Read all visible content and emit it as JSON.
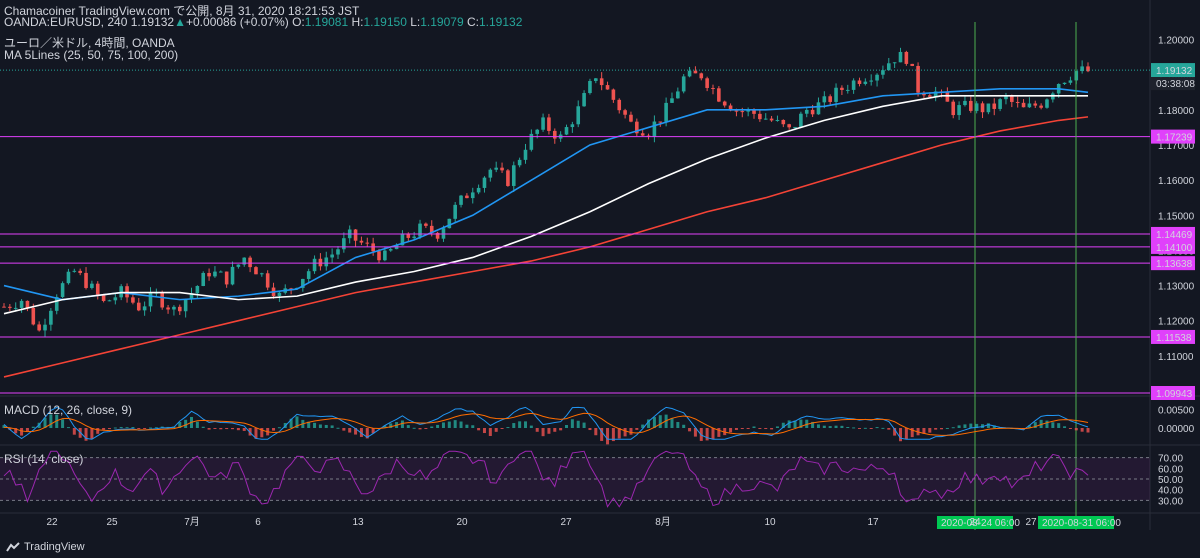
{
  "header": {
    "line1": "Chamacoiner TradingView.com で公開, 8月 31, 2020 18:21:53 JST",
    "symbol_prefix": "OANDA:EURUSD, 240",
    "last": "1.19132",
    "change": "+0.00086 (+0.07%)",
    "o_label": "O:",
    "o": "1.19081",
    "h_label": "H:",
    "h": "1.19150",
    "l_label": "L:",
    "l": "1.19079",
    "c_label": "C:",
    "c": "1.19132",
    "pane_title": "ユーロ／米ドル, 4時間, OANDA",
    "ma_label": "MA 5Lines (25, 50, 75, 100, 200)",
    "macd_label": "MACD (12, 26, close, 9)",
    "rsi_label": "RSI (14, close)",
    "countdown": "03:38:08",
    "footer": "TradingView"
  },
  "colors": {
    "bg": "#131722",
    "up": "#26a69a",
    "down": "#ef5350",
    "ma_fast": "#2196f3",
    "ma_mid": "#ffffff",
    "ma_slow": "#f44336",
    "level": "#e040fb",
    "vline": "#4caf50",
    "rsi": "#9c27b0",
    "macd": "#2196f3",
    "signal": "#ff6d00"
  },
  "chart_data": [
    {
      "type": "candlestick",
      "title": "ユーロ／米ドル, 4時間, OANDA",
      "ylim": [
        1.1,
        1.205
      ],
      "y_ticks": [
        "1.20000",
        "1.19000",
        "1.18000",
        "1.17000",
        "1.16000",
        "1.15000",
        "1.14000",
        "1.13000",
        "1.12000",
        "1.11000"
      ],
      "x_ticks": [
        "22",
        "25",
        "7月",
        "6",
        "13",
        "20",
        "27",
        "8月",
        "10",
        "17",
        "24",
        "27"
      ],
      "price_path": [
        [
          0,
          1.124
        ],
        [
          3,
          1.126
        ],
        [
          6,
          1.117
        ],
        [
          9,
          1.128
        ],
        [
          12,
          1.134
        ],
        [
          14,
          1.131
        ],
        [
          17,
          1.125
        ],
        [
          20,
          1.128
        ],
        [
          23,
          1.124
        ],
        [
          26,
          1.127
        ],
        [
          29,
          1.123
        ],
        [
          32,
          1.128
        ],
        [
          35,
          1.134
        ],
        [
          38,
          1.132
        ],
        [
          41,
          1.138
        ],
        [
          44,
          1.133
        ],
        [
          47,
          1.127
        ],
        [
          50,
          1.131
        ],
        [
          53,
          1.136
        ],
        [
          56,
          1.139
        ],
        [
          59,
          1.144
        ],
        [
          62,
          1.141
        ],
        [
          65,
          1.138
        ],
        [
          68,
          1.143
        ],
        [
          71,
          1.146
        ],
        [
          74,
          1.145
        ],
        [
          77,
          1.152
        ],
        [
          80,
          1.158
        ],
        [
          83,
          1.163
        ],
        [
          86,
          1.16
        ],
        [
          89,
          1.17
        ],
        [
          92,
          1.176
        ],
        [
          95,
          1.172
        ],
        [
          98,
          1.18
        ],
        [
          101,
          1.19
        ],
        [
          104,
          1.183
        ],
        [
          107,
          1.176
        ],
        [
          110,
          1.174
        ],
        [
          113,
          1.18
        ],
        [
          116,
          1.189
        ],
        [
          119,
          1.19
        ],
        [
          122,
          1.184
        ],
        [
          125,
          1.18
        ],
        [
          128,
          1.179
        ],
        [
          131,
          1.177
        ],
        [
          134,
          1.174
        ],
        [
          137,
          1.18
        ],
        [
          140,
          1.182
        ],
        [
          143,
          1.186
        ],
        [
          146,
          1.189
        ],
        [
          149,
          1.191
        ],
        [
          152,
          1.195
        ],
        [
          154,
          1.195
        ],
        [
          156,
          1.186
        ],
        [
          159,
          1.185
        ],
        [
          162,
          1.18
        ],
        [
          165,
          1.181
        ],
        [
          168,
          1.18
        ],
        [
          171,
          1.183
        ],
        [
          174,
          1.18
        ],
        [
          177,
          1.182
        ],
        [
          180,
          1.188
        ],
        [
          183,
          1.191
        ],
        [
          185,
          1.191
        ]
      ],
      "ma_series": [
        {
          "values": [
            [
              0,
              1.13
            ],
            [
              10,
              1.126
            ],
            [
              20,
              1.128
            ],
            [
              30,
              1.126
            ],
            [
              40,
              1.127
            ],
            [
              50,
              1.129
            ],
            [
              60,
              1.138
            ],
            [
              70,
              1.143
            ],
            [
              80,
              1.15
            ],
            [
              90,
              1.16
            ],
            [
              100,
              1.17
            ],
            [
              110,
              1.175
            ],
            [
              120,
              1.18
            ],
            [
              130,
              1.18
            ],
            [
              140,
              1.181
            ],
            [
              150,
              1.184
            ],
            [
              160,
              1.185
            ],
            [
              170,
              1.186
            ],
            [
              180,
              1.186
            ],
            [
              185,
              1.185
            ]
          ]
        },
        {
          "values": [
            [
              0,
              1.122
            ],
            [
              10,
              1.126
            ],
            [
              20,
              1.128
            ],
            [
              30,
              1.128
            ],
            [
              40,
              1.126
            ],
            [
              50,
              1.127
            ],
            [
              60,
              1.131
            ],
            [
              70,
              1.134
            ],
            [
              80,
              1.138
            ],
            [
              90,
              1.144
            ],
            [
              100,
              1.151
            ],
            [
              110,
              1.159
            ],
            [
              120,
              1.166
            ],
            [
              130,
              1.172
            ],
            [
              140,
              1.177
            ],
            [
              150,
              1.181
            ],
            [
              160,
              1.184
            ],
            [
              170,
              1.184
            ],
            [
              180,
              1.184
            ],
            [
              185,
              1.184
            ]
          ]
        },
        {
          "values": [
            [
              0,
              1.104
            ],
            [
              10,
              1.108
            ],
            [
              20,
              1.112
            ],
            [
              30,
              1.116
            ],
            [
              40,
              1.12
            ],
            [
              50,
              1.124
            ],
            [
              60,
              1.128
            ],
            [
              70,
              1.131
            ],
            [
              80,
              1.134
            ],
            [
              90,
              1.137
            ],
            [
              100,
              1.141
            ],
            [
              110,
              1.146
            ],
            [
              120,
              1.151
            ],
            [
              130,
              1.155
            ],
            [
              140,
              1.16
            ],
            [
              150,
              1.165
            ],
            [
              160,
              1.17
            ],
            [
              170,
              1.174
            ],
            [
              180,
              1.177
            ],
            [
              185,
              1.178
            ]
          ]
        }
      ],
      "levels": [
        {
          "value": 1.17239,
          "label": "1.17239"
        },
        {
          "value": 1.14469,
          "label": "1.14469"
        },
        {
          "value": 1.141,
          "label": "1.14100"
        },
        {
          "value": 1.13638,
          "label": "1.13638"
        },
        {
          "value": 1.11538,
          "label": "1.11538"
        },
        {
          "value": 1.09943,
          "label": "1.09943"
        }
      ],
      "last_price": {
        "value": 1.19132,
        "label": "1.19132"
      },
      "marked_dates": [
        {
          "label": "2020-08-24   06:00"
        },
        {
          "label": "2020-08-31   06:00"
        }
      ]
    },
    {
      "type": "line",
      "title": "MACD (12, 26, close, 9)",
      "y_ticks": [
        "0.00500",
        "0.00000"
      ],
      "ylim": [
        -0.004,
        0.008
      ]
    },
    {
      "type": "line",
      "title": "RSI (14, close)",
      "y_ticks": [
        "70.00",
        "60.00",
        "50.00",
        "40.00",
        "30.00"
      ],
      "ylim": [
        20,
        80
      ]
    }
  ]
}
